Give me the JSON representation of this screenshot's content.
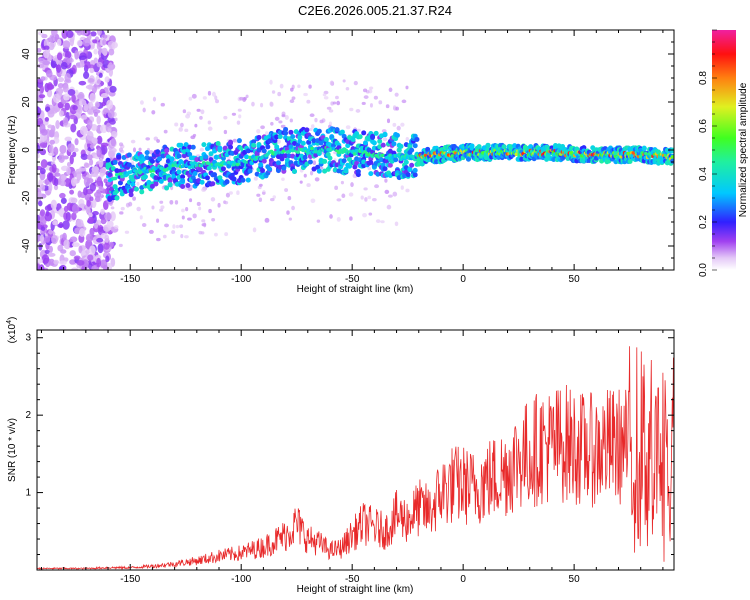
{
  "title": "C2E6.2026.005.21.37.R24",
  "colors": {
    "snr_line": "#e8292a",
    "frame": "#000000",
    "background": "#ffffff"
  },
  "chart_data": [
    {
      "type": "heatmap",
      "xlabel": "Height of straight line (km)",
      "ylabel": "Frequency (Hz)",
      "xlim": [
        -192,
        95
      ],
      "ylim": [
        -50,
        50
      ],
      "x_ticks": [
        "-150",
        "-100",
        "-50",
        "0",
        "50"
      ],
      "y_ticks": [
        "-40",
        "-20",
        "0",
        "20",
        "40"
      ],
      "colorbar": {
        "label": "Normalized spectral amplitude",
        "range": [
          0,
          1
        ],
        "ticks": [
          "0.0",
          "0.2",
          "0.4",
          "0.6",
          "0.8"
        ],
        "colormap": "rainbow (white-violet-blue-cyan-green-yellow-red-magenta)"
      },
      "grid": false,
      "description_values": {
        "ridge_center_frequency_hz": [
          {
            "x": -160,
            "y": -12
          },
          {
            "x": -140,
            "y": -8
          },
          {
            "x": -120,
            "y": -6
          },
          {
            "x": -100,
            "y": -5
          },
          {
            "x": -80,
            "y": 0
          },
          {
            "x": -60,
            "y": 0
          },
          {
            "x": -40,
            "y": -2
          },
          {
            "x": -20,
            "y": -3
          },
          {
            "x": 0,
            "y": -1
          },
          {
            "x": 20,
            "y": -1
          },
          {
            "x": 40,
            "y": -1
          },
          {
            "x": 60,
            "y": -2
          },
          {
            "x": 80,
            "y": -2
          },
          {
            "x": 95,
            "y": -3
          }
        ]
      }
    },
    {
      "type": "line",
      "xlabel": "Height of straight line (km)",
      "ylabel": "SNR (10 * v/v)",
      "y_multiplier": "(x10",
      "y_multiplier_exp": "4",
      "xlim": [
        -192,
        95
      ],
      "ylim": [
        0,
        3.1
      ],
      "x_ticks": [
        "-150",
        "-100",
        "-50",
        "0",
        "50"
      ],
      "y_ticks": [
        "1",
        "2",
        "3"
      ],
      "grid": false,
      "series": [
        {
          "color": "#e8292a",
          "points": [
            [
              -192,
              0.02
            ],
            [
              -180,
              0.02
            ],
            [
              -170,
              0.02
            ],
            [
              -160,
              0.03
            ],
            [
              -150,
              0.03
            ],
            [
              -140,
              0.05
            ],
            [
              -130,
              0.08
            ],
            [
              -120,
              0.12
            ],
            [
              -110,
              0.18
            ],
            [
              -100,
              0.22
            ],
            [
              -90,
              0.3
            ],
            [
              -80,
              0.45
            ],
            [
              -75,
              0.6
            ],
            [
              -70,
              0.4
            ],
            [
              -65,
              0.35
            ],
            [
              -60,
              0.25
            ],
            [
              -55,
              0.28
            ],
            [
              -50,
              0.45
            ],
            [
              -45,
              0.6
            ],
            [
              -40,
              0.55
            ],
            [
              -35,
              0.5
            ],
            [
              -30,
              0.7
            ],
            [
              -25,
              0.65
            ],
            [
              -20,
              0.8
            ],
            [
              -15,
              0.75
            ],
            [
              -10,
              1.0
            ],
            [
              -5,
              1.1
            ],
            [
              0,
              1.1
            ],
            [
              5,
              1.05
            ],
            [
              10,
              1.15
            ],
            [
              15,
              1.2
            ],
            [
              20,
              1.3
            ],
            [
              25,
              1.45
            ],
            [
              30,
              1.5
            ],
            [
              35,
              1.6
            ],
            [
              40,
              1.6
            ],
            [
              45,
              1.65
            ],
            [
              50,
              1.6
            ],
            [
              55,
              1.55
            ],
            [
              60,
              1.55
            ],
            [
              65,
              1.6
            ],
            [
              70,
              1.6
            ],
            [
              75,
              1.6
            ],
            [
              80,
              1.55
            ],
            [
              85,
              1.5
            ],
            [
              90,
              1.3
            ],
            [
              95,
              1.2
            ]
          ]
        }
      ]
    }
  ]
}
